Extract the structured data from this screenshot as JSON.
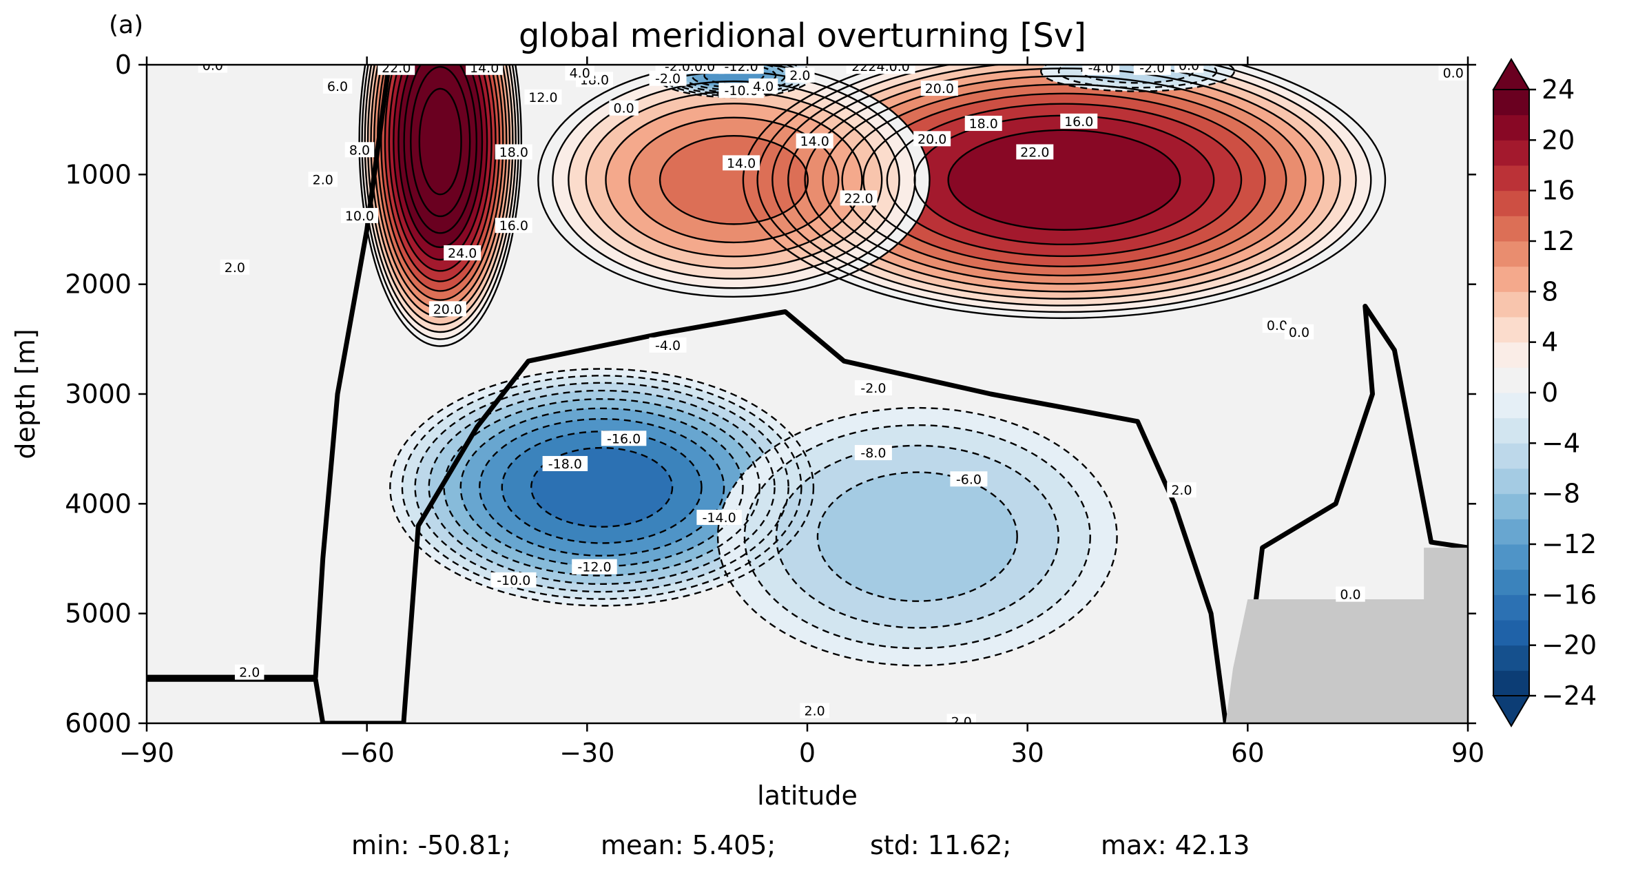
{
  "figure": {
    "panel_label": "(a)",
    "stats": {
      "min": "min: -50.81;",
      "mean": "mean: 5.405;",
      "std": "std: 11.62;",
      "max": "max: 42.13"
    }
  },
  "colors": {
    "cmap": "RdBu_r",
    "land": "#c8c8c8",
    "levels_colors": [
      "#0c3d75",
      "#15508d",
      "#1f62a8",
      "#2c71b3",
      "#3b83bc",
      "#4f94c7",
      "#68a6d0",
      "#87bbda",
      "#a4cbe3",
      "#bdd8ea",
      "#d2e5f0",
      "#e5eff6",
      "#f2f2f2",
      "#faede7",
      "#fbdccc",
      "#f8c5ad",
      "#f4a98c",
      "#e98d6f",
      "#dc6f56",
      "#cd4f43",
      "#bb3237",
      "#a3192d",
      "#880825",
      "#6a0020"
    ]
  },
  "chart_data": {
    "type": "contourf",
    "title": "global meridional overturning [Sv]",
    "xlabel": "latitude",
    "ylabel": "depth [m]",
    "xlim": [
      -90,
      90
    ],
    "ylim": [
      6000,
      0
    ],
    "xticks": [
      -90,
      -60,
      -30,
      0,
      30,
      60,
      90
    ],
    "xtick_labels": [
      "−90",
      "−60",
      "−30",
      "0",
      "30",
      "60",
      "90"
    ],
    "yticks": [
      0,
      1000,
      2000,
      3000,
      4000,
      5000,
      6000
    ],
    "ytick_labels": [
      "0",
      "1000",
      "2000",
      "3000",
      "4000",
      "5000",
      "6000"
    ],
    "colorbar": {
      "range": [
        -24,
        24
      ],
      "step": 2,
      "extend": "both",
      "ticks": [
        24,
        20,
        16,
        12,
        8,
        4,
        0,
        -4,
        -8,
        -12,
        -16,
        -20,
        -24
      ],
      "tick_labels": [
        "24",
        "20",
        "16",
        "12",
        "8",
        "4",
        "0",
        "−4",
        "−8",
        "−12",
        "−16",
        "−20",
        "−24"
      ]
    },
    "cells": [
      {
        "name": "antarctic-positive-cell",
        "lat": -50,
        "depth": 700,
        "amp": 30,
        "slat": 6,
        "sdep": 1100
      },
      {
        "name": "upper-overturning-cell",
        "lat": 35,
        "depth": 1050,
        "amp": 23,
        "slat": 24,
        "sdep": 750
      },
      {
        "name": "upper-overturning-tropical",
        "lat": -10,
        "depth": 1050,
        "amp": 14,
        "slat": 15,
        "sdep": 650
      },
      {
        "name": "abyssal-negative-cell",
        "lat": -28,
        "depth": 3850,
        "amp": -18,
        "slat": 16,
        "sdep": 650
      },
      {
        "name": "abyssal-negative-north",
        "lat": 15,
        "depth": 4300,
        "amp": -8,
        "slat": 16,
        "sdep": 750
      },
      {
        "name": "tropical-surface-negative",
        "lat": -10,
        "depth": 100,
        "amp": -14,
        "slat": 6,
        "sdep": 120
      },
      {
        "name": "subpolar-surface-negative",
        "lat": 45,
        "depth": 60,
        "amp": -6,
        "slat": 8,
        "sdep": 120
      }
    ],
    "contour_labels": [
      {
        "lat": -56,
        "depth": 30,
        "text": "22.0"
      },
      {
        "lat": -44,
        "depth": 30,
        "text": "14.0"
      },
      {
        "lat": -81,
        "depth": 10,
        "text": "0.0"
      },
      {
        "lat": -64,
        "depth": 200,
        "text": "6.0"
      },
      {
        "lat": -61,
        "depth": 780,
        "text": "8.0"
      },
      {
        "lat": -66,
        "depth": 1050,
        "text": "2.0"
      },
      {
        "lat": -61,
        "depth": 1380,
        "text": "10.0"
      },
      {
        "lat": -78,
        "depth": 1850,
        "text": "2.0"
      },
      {
        "lat": -36,
        "depth": 300,
        "text": "12.0"
      },
      {
        "lat": -40,
        "depth": 800,
        "text": "18.0"
      },
      {
        "lat": -40,
        "depth": 1470,
        "text": "16.0"
      },
      {
        "lat": -47,
        "depth": 1720,
        "text": "24.0"
      },
      {
        "lat": -49,
        "depth": 2230,
        "text": "20.0"
      },
      {
        "lat": -29,
        "depth": 140,
        "text": "18.0"
      },
      {
        "lat": -25,
        "depth": 400,
        "text": "0.0"
      },
      {
        "lat": -31,
        "depth": 80,
        "text": "4.0"
      },
      {
        "lat": -16,
        "depth": 20,
        "text": "-2.0.0.0"
      },
      {
        "lat": -9,
        "depth": 20,
        "text": "-12.0"
      },
      {
        "lat": -19,
        "depth": 130,
        "text": "-2.0"
      },
      {
        "lat": -9,
        "depth": 240,
        "text": "-10.0"
      },
      {
        "lat": -6,
        "depth": 200,
        "text": "4.0"
      },
      {
        "lat": -1,
        "depth": 100,
        "text": "2.0"
      },
      {
        "lat": 10,
        "depth": 20,
        "text": "2224.0.0"
      },
      {
        "lat": 18,
        "depth": 220,
        "text": "20.0"
      },
      {
        "lat": 1,
        "depth": 700,
        "text": "14.0"
      },
      {
        "lat": -9,
        "depth": 900,
        "text": "14.0"
      },
      {
        "lat": 17,
        "depth": 680,
        "text": "20.0"
      },
      {
        "lat": 24,
        "depth": 540,
        "text": "18.0"
      },
      {
        "lat": 37,
        "depth": 520,
        "text": "16.0"
      },
      {
        "lat": 31,
        "depth": 800,
        "text": "22.0"
      },
      {
        "lat": 7,
        "depth": 1220,
        "text": "22.0"
      },
      {
        "lat": 40,
        "depth": 30,
        "text": "-4.0"
      },
      {
        "lat": 47,
        "depth": 30,
        "text": "-2.0"
      },
      {
        "lat": 52,
        "depth": 10,
        "text": "0.0"
      },
      {
        "lat": 88,
        "depth": 80,
        "text": "0.0"
      },
      {
        "lat": -19,
        "depth": 2560,
        "text": "-4.0"
      },
      {
        "lat": 9,
        "depth": 2950,
        "text": "-2.0"
      },
      {
        "lat": -25,
        "depth": 3410,
        "text": "-16.0"
      },
      {
        "lat": -33,
        "depth": 3640,
        "text": "-18.0"
      },
      {
        "lat": 9,
        "depth": 3540,
        "text": "-8.0"
      },
      {
        "lat": 22,
        "depth": 3780,
        "text": "-6.0"
      },
      {
        "lat": -12,
        "depth": 4130,
        "text": "-14.0"
      },
      {
        "lat": -29,
        "depth": 4580,
        "text": "-12.0"
      },
      {
        "lat": -40,
        "depth": 4700,
        "text": "-10.0"
      },
      {
        "lat": 64,
        "depth": 2380,
        "text": "0.0"
      },
      {
        "lat": 67,
        "depth": 2440,
        "text": "0.0"
      },
      {
        "lat": 51,
        "depth": 3880,
        "text": "2.0"
      },
      {
        "lat": 74,
        "depth": 4830,
        "text": "0.0"
      },
      {
        "lat": -76,
        "depth": 5540,
        "text": "2.0"
      },
      {
        "lat": 1,
        "depth": 5890,
        "text": "2.0"
      },
      {
        "lat": 21,
        "depth": 5990,
        "text": "2.0"
      }
    ]
  }
}
